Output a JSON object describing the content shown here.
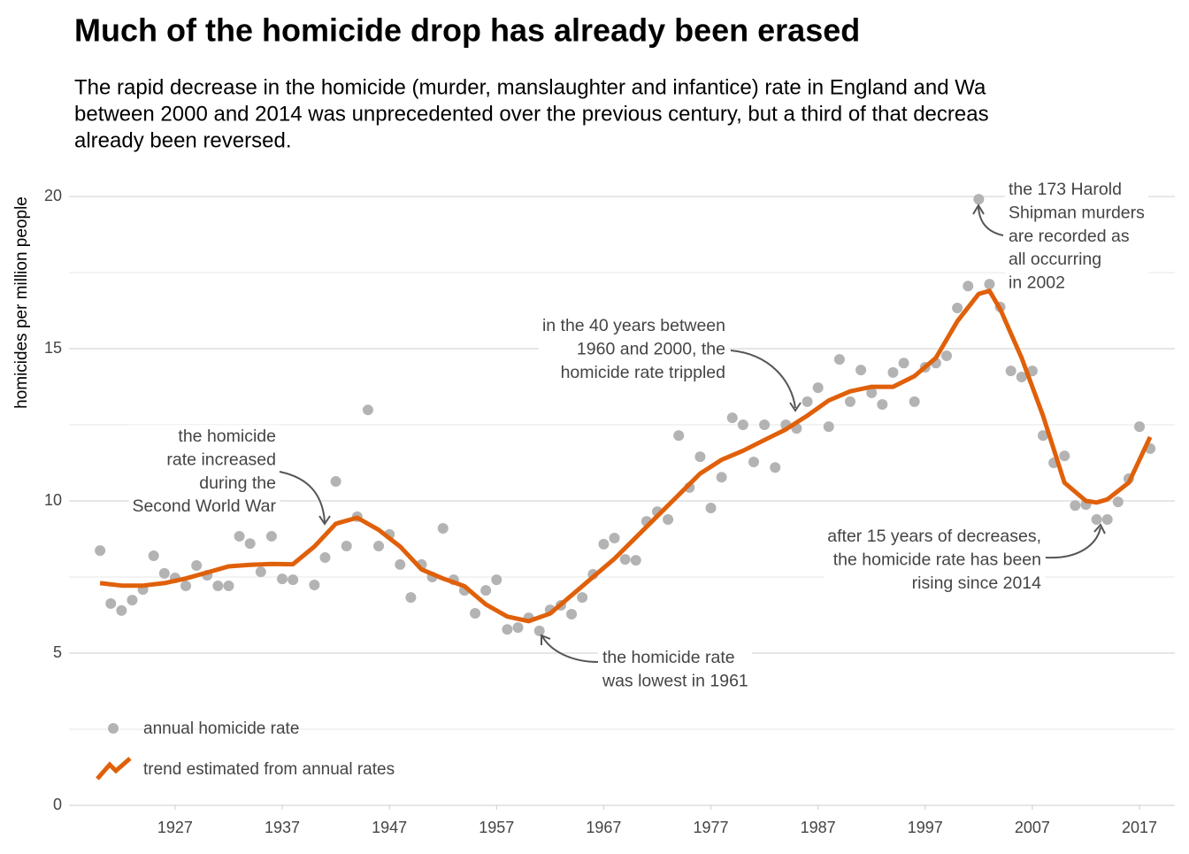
{
  "chart_data": {
    "type": "scatter",
    "title": "Much of the homicide drop has already been erased",
    "subtitle": [
      "The rapid decrease in the homicide (murder, manslaughter and infantice) rate in England and Wa",
      "between 2000 and 2014 was unprecedented over the previous century, but a third of that decreas",
      "already been reversed."
    ],
    "y_label": "homicides per million people",
    "xlim": [
      1917.1,
      2020.3
    ],
    "xticks": [
      1927,
      1937,
      1947,
      1957,
      1967,
      1977,
      1987,
      1997,
      2007,
      2017
    ],
    "ylim": [
      0,
      20.7
    ],
    "yticks": [
      0,
      5,
      10,
      15,
      20
    ],
    "grid": true,
    "series": [
      {
        "name": "annual homicide rate",
        "color": "#b3b3b3",
        "x": [
          1920,
          1921,
          1922,
          1923,
          1924,
          1925,
          1926,
          1927,
          1928,
          1929,
          1930,
          1931,
          1932,
          1933,
          1934,
          1935,
          1936,
          1937,
          1938,
          1940,
          1941,
          1942,
          1943,
          1944,
          1945,
          1946,
          1947,
          1948,
          1949,
          1950,
          1951,
          1952,
          1953,
          1954,
          1955,
          1956,
          1957,
          1958,
          1959,
          1960,
          1961,
          1962,
          1963,
          1964,
          1965,
          1966,
          1967,
          1968,
          1969,
          1970,
          1971,
          1972,
          1973,
          1974,
          1975,
          1976,
          1977,
          1978,
          1979,
          1980,
          1981,
          1982,
          1983,
          1984,
          1985,
          1986,
          1987,
          1988,
          1989,
          1990,
          1991,
          1992,
          1993,
          1994,
          1995,
          1996,
          1997,
          1998,
          1999,
          2000,
          2001,
          2002,
          2003,
          2004,
          2005,
          2006,
          2007,
          2008,
          2009,
          2010,
          2011,
          2012,
          2013,
          2014,
          2015,
          2016,
          2017,
          2018
        ],
        "values": [
          8.37,
          6.63,
          6.4,
          6.74,
          7.09,
          8.2,
          7.62,
          7.47,
          7.21,
          7.88,
          7.56,
          7.21,
          7.21,
          8.84,
          8.6,
          7.67,
          8.84,
          7.44,
          7.41,
          7.24,
          8.14,
          10.64,
          8.52,
          9.48,
          12.99,
          8.52,
          8.9,
          7.91,
          6.83,
          7.91,
          7.5,
          9.1,
          7.41,
          7.06,
          6.31,
          7.06,
          7.41,
          5.78,
          5.84,
          6.16,
          5.73,
          6.42,
          6.57,
          6.28,
          6.83,
          7.59,
          8.58,
          8.78,
          8.08,
          8.05,
          9.33,
          9.65,
          9.39,
          12.15,
          10.44,
          11.45,
          9.77,
          10.78,
          12.73,
          12.5,
          11.28,
          12.5,
          11.1,
          12.5,
          12.38,
          13.26,
          13.72,
          12.44,
          14.65,
          13.26,
          14.3,
          13.55,
          13.17,
          14.22,
          14.53,
          13.26,
          14.39,
          14.53,
          14.77,
          16.34,
          17.06,
          19.91,
          17.12,
          16.37,
          14.27,
          14.07,
          14.27,
          12.15,
          11.25,
          11.48,
          9.85,
          9.88,
          9.39,
          9.39,
          9.97,
          10.73,
          12.44,
          11.72
        ]
      },
      {
        "name": "trend estimated from annual rates",
        "color": "#e0600a",
        "x": [
          1920,
          1922,
          1924,
          1926,
          1928,
          1930,
          1932,
          1934,
          1936,
          1938,
          1940,
          1942,
          1944,
          1946,
          1948,
          1950,
          1952,
          1954,
          1956,
          1958,
          1960,
          1962,
          1964,
          1966,
          1968,
          1970,
          1972,
          1974,
          1976,
          1978,
          1980,
          1982,
          1984,
          1986,
          1988,
          1990,
          1992,
          1994,
          1996,
          1998,
          2000,
          2002,
          2003,
          2004,
          2006,
          2008,
          2010,
          2012,
          2013,
          2014,
          2016,
          2018
        ],
        "values": [
          7.3,
          7.22,
          7.22,
          7.3,
          7.45,
          7.65,
          7.85,
          7.9,
          7.93,
          7.92,
          8.5,
          9.25,
          9.45,
          9.05,
          8.5,
          7.75,
          7.45,
          7.2,
          6.6,
          6.2,
          6.05,
          6.3,
          6.9,
          7.5,
          8.1,
          8.8,
          9.5,
          10.2,
          10.9,
          11.35,
          11.65,
          12.0,
          12.35,
          12.8,
          13.3,
          13.6,
          13.75,
          13.75,
          14.1,
          14.7,
          15.9,
          16.8,
          16.9,
          16.3,
          14.7,
          12.8,
          10.6,
          10.0,
          9.95,
          10.05,
          10.6,
          12.1
        ]
      }
    ],
    "annotations": [
      {
        "lines": [
          "the homicide",
          "rate increased",
          "during the",
          "Second World War"
        ]
      },
      {
        "lines": [
          "in the 40 years between",
          "1960 and 2000, the",
          "homicide rate trippled"
        ]
      },
      {
        "lines": [
          "the homicide rate",
          "was lowest in 1961"
        ]
      },
      {
        "lines": [
          "after 15 years of decreases,",
          "the homicide rate has been",
          "rising since 2014"
        ]
      },
      {
        "lines": [
          "the 173 Harold",
          "Shipman murders",
          "are recorded as",
          "all occurring",
          "in 2002"
        ]
      }
    ]
  }
}
